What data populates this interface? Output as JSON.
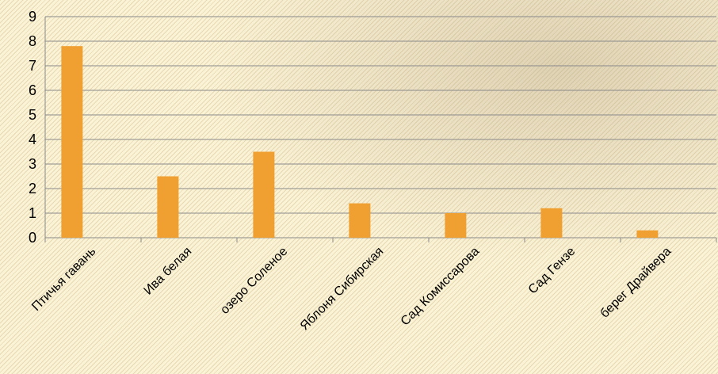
{
  "chart_data": {
    "type": "bar",
    "categories": [
      "Птичья гавань",
      "Ива белая",
      "озеро Соленое",
      "Яблоня Сибирская",
      "Сад Комиссарова",
      "Сад Гензе",
      "берег Драйвера"
    ],
    "values": [
      7.8,
      2.5,
      3.5,
      1.4,
      1.0,
      1.2,
      0.3
    ],
    "ylim": [
      0,
      9
    ],
    "yticks": [
      0,
      1,
      2,
      3,
      4,
      5,
      6,
      7,
      8,
      9
    ],
    "grid": true,
    "legend": "none",
    "bar_color": "#f0a030"
  }
}
